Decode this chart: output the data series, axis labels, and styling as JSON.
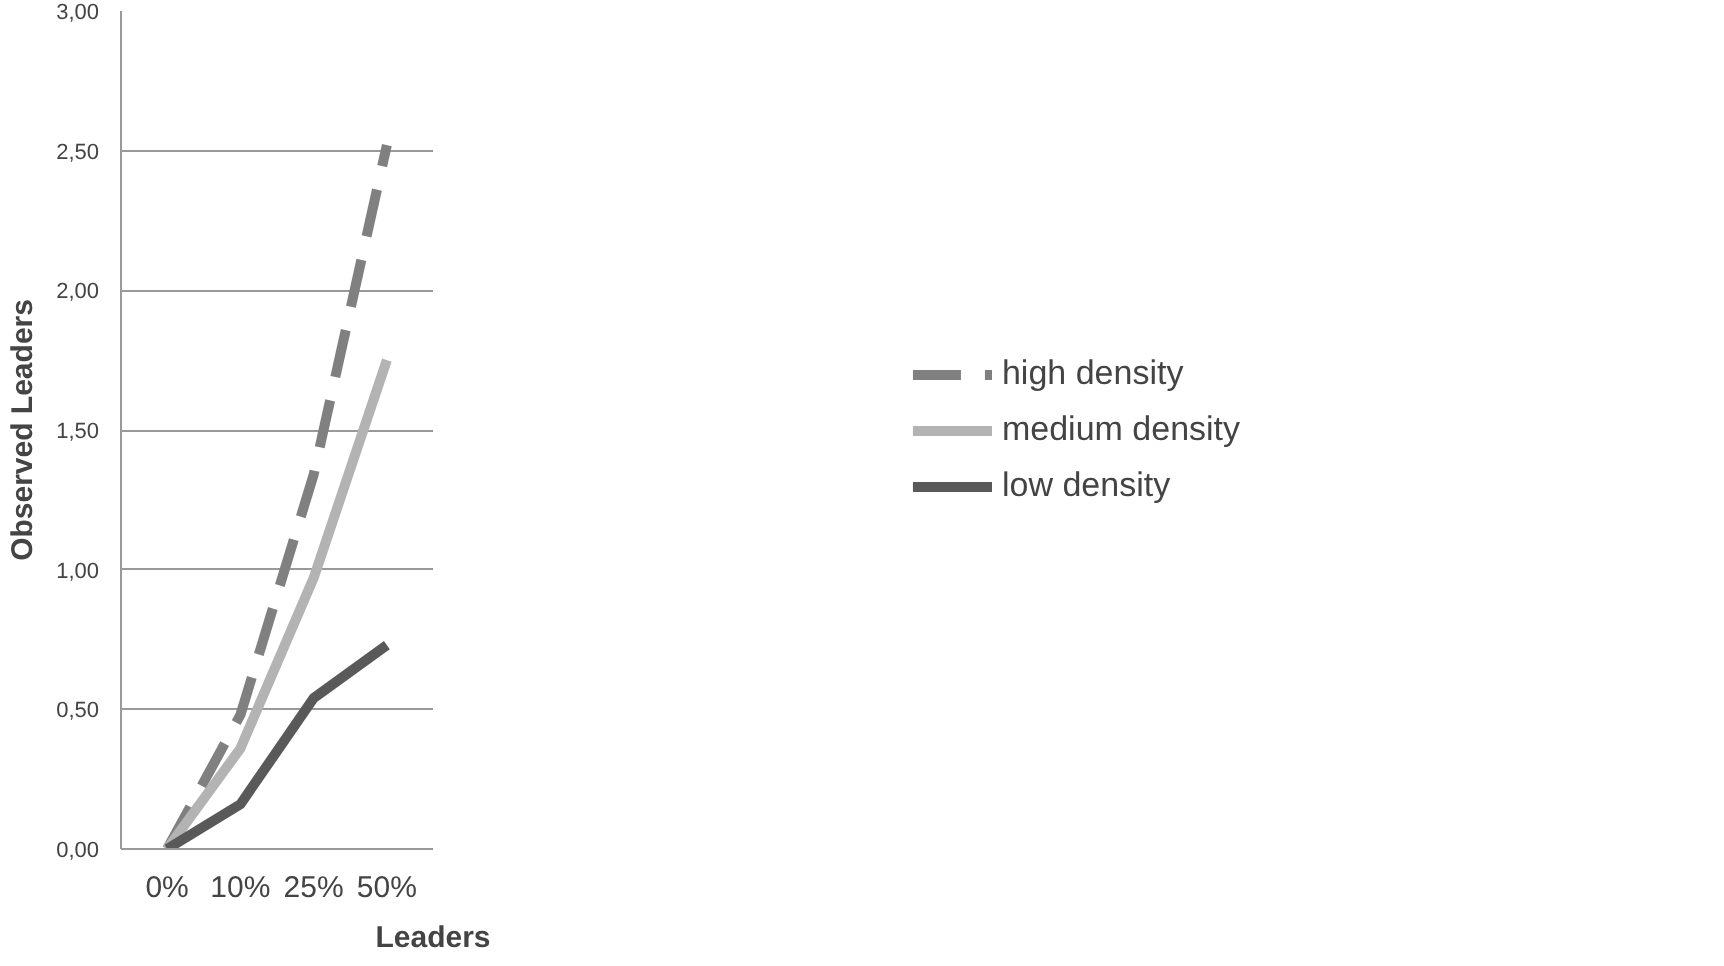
{
  "chart_data": {
    "type": "line",
    "xlabel": "Leaders",
    "ylabel": "Observed Leaders",
    "categories": [
      "0%",
      "10%",
      "25%",
      "50%"
    ],
    "series": [
      {
        "name": "high density",
        "color": "#808080",
        "line_style": "dashed",
        "values": [
          0,
          0.48,
          1.34,
          2.52
        ]
      },
      {
        "name": "medium density",
        "color": "#b3b3b3",
        "line_style": "solid",
        "values": [
          0,
          0.36,
          0.97,
          1.75
        ]
      },
      {
        "name": "low density",
        "color": "#595959",
        "line_style": "solid",
        "values": [
          0,
          0.16,
          0.54,
          0.73
        ]
      }
    ],
    "ylim": [
      0,
      3
    ],
    "yticks": [
      {
        "value": 0,
        "label": "0,00"
      },
      {
        "value": 0.5,
        "label": "0,50"
      },
      {
        "value": 1,
        "label": "1,00"
      },
      {
        "value": 1.5,
        "label": "1,50"
      },
      {
        "value": 2,
        "label": "2,00"
      },
      {
        "value": 2.5,
        "label": "2,50"
      },
      {
        "value": 3,
        "label": "3,00"
      }
    ],
    "grid": "y",
    "legend": "right",
    "marker": "none"
  }
}
